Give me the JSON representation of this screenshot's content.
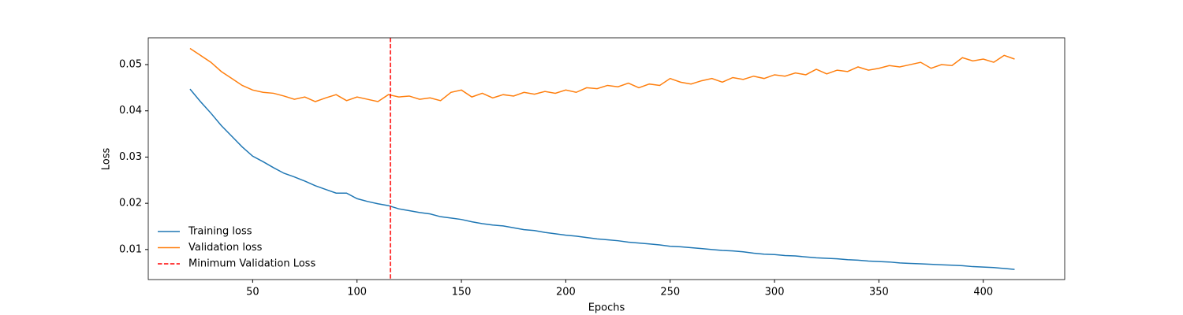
{
  "chart_data": {
    "type": "line",
    "xlabel": "Epochs",
    "ylabel": "Loss",
    "x": [
      20,
      25,
      30,
      35,
      40,
      45,
      50,
      55,
      60,
      65,
      70,
      75,
      80,
      85,
      90,
      95,
      100,
      105,
      110,
      115,
      120,
      125,
      130,
      135,
      140,
      145,
      150,
      155,
      160,
      165,
      170,
      175,
      180,
      185,
      190,
      195,
      200,
      205,
      210,
      215,
      220,
      225,
      230,
      235,
      240,
      245,
      250,
      255,
      260,
      265,
      270,
      275,
      280,
      285,
      290,
      295,
      300,
      305,
      310,
      315,
      320,
      325,
      330,
      335,
      340,
      345,
      350,
      355,
      360,
      365,
      370,
      375,
      380,
      385,
      390,
      395,
      400,
      405,
      410,
      415
    ],
    "series": [
      {
        "name": "Training loss",
        "color": "#1f77b4",
        "values": [
          0.0447,
          0.042,
          0.0395,
          0.0368,
          0.0345,
          0.0322,
          0.0302,
          0.029,
          0.0277,
          0.0265,
          0.0257,
          0.0248,
          0.0238,
          0.023,
          0.0222,
          0.0222,
          0.021,
          0.0204,
          0.0199,
          0.0195,
          0.0188,
          0.0184,
          0.018,
          0.0177,
          0.0171,
          0.0168,
          0.0165,
          0.016,
          0.0156,
          0.0153,
          0.0151,
          0.0147,
          0.0143,
          0.0141,
          0.0137,
          0.0134,
          0.0131,
          0.0129,
          0.0126,
          0.0123,
          0.0121,
          0.0119,
          0.0116,
          0.0114,
          0.0112,
          0.011,
          0.0107,
          0.0106,
          0.0104,
          0.0102,
          0.01,
          0.0098,
          0.0097,
          0.0095,
          0.0092,
          0.009,
          0.0089,
          0.0087,
          0.0086,
          0.0084,
          0.0082,
          0.0081,
          0.008,
          0.0078,
          0.0077,
          0.0075,
          0.0074,
          0.0073,
          0.0071,
          0.007,
          0.0069,
          0.0068,
          0.0067,
          0.0066,
          0.0065,
          0.0063,
          0.0062,
          0.0061,
          0.0059,
          0.0057
        ]
      },
      {
        "name": "Validation loss",
        "color": "#ff7f0e",
        "values": [
          0.0535,
          0.052,
          0.0505,
          0.0485,
          0.047,
          0.0455,
          0.0445,
          0.044,
          0.0438,
          0.0432,
          0.0425,
          0.043,
          0.042,
          0.0428,
          0.0435,
          0.0422,
          0.043,
          0.0425,
          0.042,
          0.0435,
          0.043,
          0.0432,
          0.0425,
          0.0428,
          0.0422,
          0.044,
          0.0445,
          0.043,
          0.0438,
          0.0428,
          0.0435,
          0.0432,
          0.044,
          0.0436,
          0.0442,
          0.0438,
          0.0445,
          0.044,
          0.045,
          0.0448,
          0.0455,
          0.0452,
          0.046,
          0.045,
          0.0458,
          0.0455,
          0.047,
          0.0462,
          0.0458,
          0.0465,
          0.047,
          0.0462,
          0.0472,
          0.0468,
          0.0475,
          0.047,
          0.0478,
          0.0475,
          0.0482,
          0.0478,
          0.049,
          0.048,
          0.0488,
          0.0485,
          0.0495,
          0.0488,
          0.0492,
          0.0498,
          0.0495,
          0.05,
          0.0505,
          0.0492,
          0.05,
          0.0498,
          0.0515,
          0.0508,
          0.0512,
          0.0505,
          0.052,
          0.0512
        ]
      }
    ],
    "vline": {
      "name": "Minimum Validation Loss",
      "x": 116,
      "color": "#ff0000"
    },
    "xlim": [
      0,
      439
    ],
    "ylim": [
      0.0035,
      0.0558
    ],
    "xticks": [
      50,
      100,
      150,
      200,
      250,
      300,
      350,
      400
    ],
    "yticks": [
      0.01,
      0.02,
      0.03,
      0.04,
      0.05
    ],
    "legend": "lower left"
  }
}
